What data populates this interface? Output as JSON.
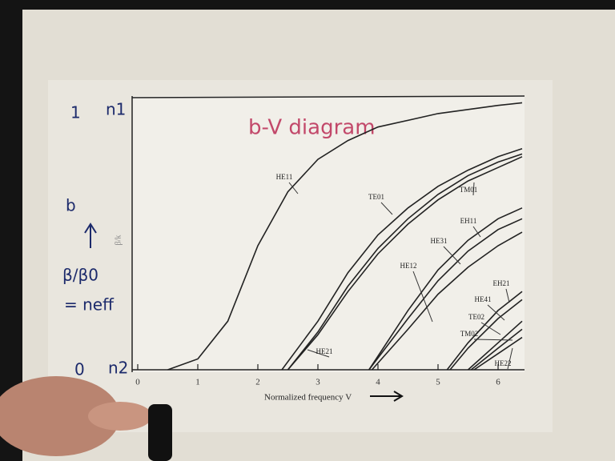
{
  "chart_data": {
    "type": "line",
    "title": "b-V diagram",
    "x_label": "Normalized frequency V",
    "y_label": "β/k",
    "xlim": [
      0,
      6.44
    ],
    "ylim": [
      0,
      1
    ],
    "xticks": [
      0,
      1,
      2,
      3,
      4,
      5,
      6
    ],
    "annotations": [
      "1",
      "n1",
      "b",
      "β/β0",
      "= neff",
      "0",
      "n2"
    ],
    "series": [
      {
        "name": "HE11",
        "color": "#222222",
        "x": [
          0.5,
          1,
          1.5,
          2,
          2.5,
          3,
          3.5,
          4,
          5,
          6,
          6.4
        ],
        "values": [
          0,
          0.04,
          0.18,
          0.46,
          0.66,
          0.78,
          0.85,
          0.9,
          0.95,
          0.98,
          0.99
        ]
      },
      {
        "name": "TE01",
        "color": "#222222",
        "x": [
          2.4,
          3,
          3.5,
          4,
          4.5,
          5,
          5.5,
          6,
          6.4
        ],
        "values": [
          0,
          0.18,
          0.36,
          0.5,
          0.6,
          0.68,
          0.74,
          0.79,
          0.82
        ]
      },
      {
        "name": "HE21",
        "color": "#222222",
        "x": [
          2.5,
          3,
          3.5,
          4,
          4.5,
          5,
          5.5,
          6,
          6.4
        ],
        "values": [
          0,
          0.14,
          0.31,
          0.45,
          0.56,
          0.65,
          0.72,
          0.77,
          0.8
        ]
      },
      {
        "name": "TM01",
        "color": "#222222",
        "x": [
          2.5,
          3,
          3.5,
          4,
          4.5,
          5,
          5.5,
          6,
          6.4
        ],
        "values": [
          0,
          0.13,
          0.29,
          0.43,
          0.54,
          0.63,
          0.7,
          0.75,
          0.79
        ]
      },
      {
        "name": "EH11",
        "color": "#222222",
        "x": [
          3.85,
          4.5,
          5,
          5.5,
          6,
          6.4
        ],
        "values": [
          0,
          0.22,
          0.37,
          0.48,
          0.56,
          0.6
        ]
      },
      {
        "name": "HE31",
        "color": "#222222",
        "x": [
          3.85,
          4.5,
          5,
          5.5,
          6,
          6.4
        ],
        "values": [
          0,
          0.19,
          0.33,
          0.44,
          0.52,
          0.56
        ]
      },
      {
        "name": "HE12",
        "color": "#222222",
        "x": [
          3.9,
          4.5,
          5,
          5.5,
          6,
          6.4
        ],
        "values": [
          0,
          0.15,
          0.28,
          0.38,
          0.46,
          0.51
        ]
      },
      {
        "name": "EH21",
        "color": "#222222",
        "x": [
          5.15,
          5.5,
          6,
          6.4
        ],
        "values": [
          0,
          0.1,
          0.22,
          0.29
        ]
      },
      {
        "name": "HE41",
        "color": "#222222",
        "x": [
          5.2,
          5.5,
          6,
          6.4
        ],
        "values": [
          0,
          0.08,
          0.19,
          0.26
        ]
      },
      {
        "name": "TE02",
        "color": "#222222",
        "x": [
          5.5,
          6,
          6.4
        ],
        "values": [
          0,
          0.1,
          0.18
        ]
      },
      {
        "name": "TM02",
        "color": "#222222",
        "x": [
          5.55,
          6,
          6.4
        ],
        "values": [
          0,
          0.08,
          0.15
        ]
      },
      {
        "name": "HE22",
        "color": "#222222",
        "x": [
          5.6,
          6,
          6.4
        ],
        "values": [
          0,
          0.06,
          0.12
        ]
      }
    ]
  }
}
